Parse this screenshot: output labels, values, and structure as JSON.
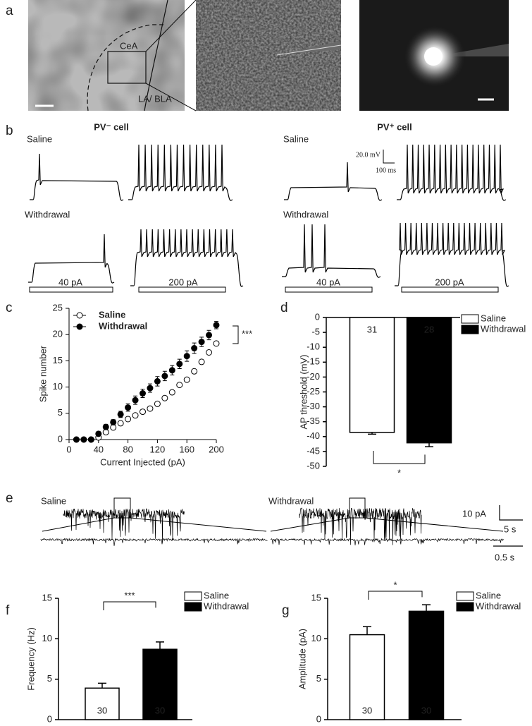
{
  "panel_labels": [
    "a",
    "b",
    "c",
    "d",
    "e",
    "f",
    "g"
  ],
  "panel_a": {
    "region_labels": [
      "CeA",
      "LA/ BLA"
    ]
  },
  "panel_b": {
    "cell_types": [
      "PV⁻ cell",
      "PV⁺ cell"
    ],
    "conditions": [
      "Saline",
      "Withdrawal"
    ],
    "currents": [
      "40 pA",
      "200 pA"
    ],
    "scale_bar": [
      "20.0 mV",
      "100 ms"
    ]
  },
  "panel_e": {
    "conditions": [
      "Saline",
      "Withdrawal"
    ],
    "scale_bars": [
      "10 pA",
      "5 s",
      "0.5 s"
    ]
  },
  "chart_data": [
    {
      "type": "line",
      "xlabel": "Current Injected  (pA)",
      "ylabel": "Spike number",
      "x": [
        10,
        20,
        30,
        40,
        50,
        60,
        70,
        80,
        90,
        100,
        110,
        120,
        130,
        140,
        150,
        160,
        170,
        180,
        190,
        200
      ],
      "series": [
        {
          "name": "Saline",
          "color": "#ffffff",
          "values": [
            0,
            0,
            0,
            0.4,
            1.4,
            2.3,
            3.1,
            3.9,
            4.6,
            5.3,
            5.9,
            6.8,
            7.9,
            9.0,
            10.4,
            11.4,
            13.0,
            14.8,
            16.6,
            18.3
          ]
        },
        {
          "name": "Withdrawal",
          "color": "#000000",
          "values": [
            0,
            0,
            0,
            1.1,
            2.4,
            3.3,
            4.8,
            6.1,
            7.5,
            8.8,
            9.8,
            11.1,
            12.1,
            13.2,
            14.4,
            15.9,
            17.4,
            18.6,
            19.9,
            21.8
          ],
          "errors": [
            0,
            0,
            0,
            0.4,
            0.5,
            0.5,
            0.6,
            0.7,
            0.8,
            0.8,
            0.8,
            0.9,
            0.9,
            0.9,
            0.9,
            1.0,
            1.0,
            0.9,
            0.9,
            0.7
          ]
        }
      ],
      "xlim": [
        0,
        200
      ],
      "xticks": [
        0,
        40,
        80,
        120,
        160,
        200
      ],
      "ylim": [
        0,
        25
      ],
      "yticks": [
        0,
        5,
        10,
        15,
        20,
        25
      ],
      "annotation": "***"
    },
    {
      "type": "bar",
      "ylabel": "AP threshold (mV)",
      "series": [
        {
          "name": "Saline",
          "color": "#ffffff",
          "values": [
            -38.6
          ],
          "errors": [
            0.6
          ],
          "n": 31
        },
        {
          "name": "Withdrawal",
          "color": "#000000",
          "values": [
            -42.1
          ],
          "errors": [
            1.3
          ],
          "n": 28
        }
      ],
      "ylim": [
        -50,
        0
      ],
      "yticks": [
        0,
        -5,
        -10,
        -15,
        -20,
        -25,
        -30,
        -35,
        -40,
        -45,
        -50
      ],
      "annotation": "*"
    },
    {
      "type": "bar",
      "ylabel": "Frequency (Hz)",
      "series": [
        {
          "name": "Saline",
          "color": "#ffffff",
          "values": [
            3.9
          ],
          "errors": [
            0.6
          ],
          "n": 30
        },
        {
          "name": "Withdrawal",
          "color": "#000000",
          "values": [
            8.7
          ],
          "errors": [
            0.9
          ],
          "n": 30
        }
      ],
      "ylim": [
        0,
        15
      ],
      "yticks": [
        0,
        5,
        10,
        15
      ],
      "annotation": "***"
    },
    {
      "type": "bar",
      "ylabel": "Amplitude (pA)",
      "series": [
        {
          "name": "Saline",
          "color": "#ffffff",
          "values": [
            10.5
          ],
          "errors": [
            1.0
          ],
          "n": 30
        },
        {
          "name": "Withdrawal",
          "color": "#000000",
          "values": [
            13.4
          ],
          "errors": [
            0.8
          ],
          "n": 30
        }
      ],
      "ylim": [
        0,
        15
      ],
      "yticks": [
        0,
        5,
        10,
        15
      ],
      "annotation": "*"
    }
  ]
}
